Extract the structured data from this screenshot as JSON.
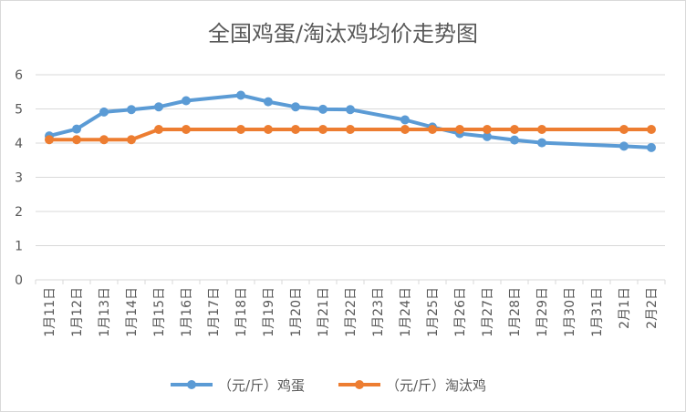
{
  "chart_data": {
    "type": "line",
    "title": "全国鸡蛋/淘汰鸡均价走势图",
    "xlabel": "",
    "ylabel": "",
    "ylim": [
      0,
      6
    ],
    "yticks": [
      "0",
      "1",
      "2",
      "3",
      "4",
      "5",
      "6"
    ],
    "grid": true,
    "legend_position": "bottom",
    "categories": [
      "1月11日",
      "1月12日",
      "1月13日",
      "1月14日",
      "1月15日",
      "1月16日",
      "1月17日",
      "1月18日",
      "1月19日",
      "1月20日",
      "1月21日",
      "1月22日",
      "1月23日",
      "1月24日",
      "1月25日",
      "1月26日",
      "1月27日",
      "1月28日",
      "1月29日",
      "1月30日",
      "1月31日",
      "2月1日",
      "2月2日"
    ],
    "series": [
      {
        "name": "（元/斤）鸡蛋",
        "color": "#5b9bd5",
        "values": [
          4.21,
          4.41,
          4.91,
          4.98,
          5.06,
          5.24,
          null,
          5.4,
          5.21,
          5.06,
          4.99,
          4.98,
          null,
          4.68,
          4.47,
          4.28,
          4.19,
          4.09,
          4.01,
          null,
          null,
          3.91,
          3.87
        ]
      },
      {
        "name": "（元/斤）淘汰鸡",
        "color": "#ed7d31",
        "values": [
          4.1,
          4.1,
          4.1,
          4.1,
          4.4,
          4.4,
          null,
          4.4,
          4.4,
          4.4,
          4.4,
          4.4,
          null,
          4.4,
          4.4,
          4.4,
          4.4,
          4.4,
          4.4,
          null,
          null,
          4.4,
          4.4
        ]
      }
    ]
  }
}
